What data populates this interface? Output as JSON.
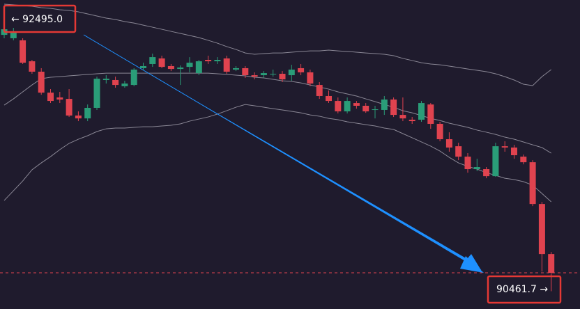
{
  "chart_data": {
    "type": "candlestick",
    "up_color": "#2a9d78",
    "down_color": "#e0434f",
    "band_color": "#8b8896",
    "background": "#1f1b2d",
    "ylim": [
      90325,
      92700
    ],
    "open": [
      92432,
      92406,
      92390,
      92229,
      92149,
      91988,
      91951,
      91940,
      91812,
      91790,
      91871,
      92085,
      92085,
      92037,
      92047,
      92176,
      92208,
      92251,
      92192,
      92170,
      92186,
      92138,
      92240,
      92229,
      92251,
      92165,
      92176,
      92122,
      92122,
      92133,
      92133,
      92122,
      92176,
      92144,
      92047,
      91962,
      91924,
      91844,
      91908,
      91887,
      91855,
      91855,
      91935,
      91817,
      91780,
      91780,
      91897,
      91748,
      91630,
      91576,
      91496,
      91400,
      91400,
      91346,
      91576,
      91566,
      91496,
      91453,
      91132,
      90747
    ],
    "high": [
      92495,
      92486,
      92406,
      92240,
      92176,
      92015,
      91994,
      92015,
      91844,
      91897,
      92111,
      92122,
      92111,
      92079,
      92176,
      92218,
      92288,
      92272,
      92208,
      92197,
      92261,
      92240,
      92272,
      92261,
      92272,
      92192,
      92192,
      92144,
      92154,
      92165,
      92154,
      92202,
      92208,
      92165,
      92069,
      92004,
      91951,
      91951,
      91924,
      91908,
      91887,
      91962,
      91951,
      91951,
      91801,
      91924,
      91908,
      91764,
      91683,
      91603,
      91523,
      91480,
      91416,
      91603,
      91614,
      91587,
      91512,
      91469,
      91148,
      90763
    ],
    "low": [
      92406,
      92390,
      92208,
      92133,
      91972,
      91908,
      91908,
      91801,
      91769,
      91769,
      91855,
      92058,
      92026,
      92026,
      92037,
      92160,
      92186,
      92176,
      92154,
      92047,
      92144,
      92122,
      92208,
      92208,
      92133,
      92154,
      92101,
      92090,
      92101,
      92111,
      92069,
      92079,
      92122,
      92037,
      91940,
      91908,
      91828,
      91828,
      91865,
      91833,
      91790,
      91817,
      91801,
      91769,
      91748,
      91764,
      91710,
      91614,
      91534,
      91469,
      91373,
      91384,
      91330,
      91341,
      91534,
      91480,
      91437,
      91116,
      90613,
      90461.7
    ],
    "close": [
      92475,
      92459,
      92218,
      92149,
      91988,
      91924,
      91935,
      91812,
      91790,
      91871,
      92095,
      92095,
      92047,
      92058,
      92165,
      92192,
      92261,
      92186,
      92170,
      92181,
      92218,
      92229,
      92229,
      92240,
      92149,
      92176,
      92122,
      92111,
      92138,
      92133,
      92090,
      92165,
      92144,
      92058,
      91962,
      91924,
      91844,
      91924,
      91887,
      91844,
      91860,
      91935,
      91817,
      91790,
      91769,
      91908,
      91748,
      91630,
      91566,
      91496,
      91400,
      91416,
      91346,
      91576,
      91566,
      91507,
      91453,
      91132,
      90747,
      90603
    ],
    "bands": [
      {
        "values": [
          92668,
          92663,
          92657,
          92652,
          92641,
          92636,
          92625,
          92620,
          92609,
          92593,
          92577,
          92561,
          92550,
          92534,
          92523,
          92507,
          92491,
          92475,
          92459,
          92443,
          92427,
          92411,
          92390,
          92368,
          92342,
          92320,
          92293,
          92283,
          92288,
          92293,
          92293,
          92299,
          92304,
          92309,
          92309,
          92315,
          92309,
          92304,
          92299,
          92293,
          92288,
          92283,
          92272,
          92251,
          92235,
          92218,
          92208,
          92202,
          92192,
          92181,
          92170,
          92160,
          92149,
          92133,
          92111,
          92085,
          92053,
          92042,
          92111,
          92165
        ]
      },
      {
        "values": [
          91892,
          91940,
          91994,
          92047,
          92095,
          92106,
          92111,
          92117,
          92122,
          92128,
          92133,
          92138,
          92138,
          92138,
          92138,
          92138,
          92138,
          92138,
          92138,
          92138,
          92138,
          92138,
          92138,
          92133,
          92128,
          92122,
          92117,
          92106,
          92101,
          92090,
          92079,
          92074,
          92063,
          92047,
          92031,
          92015,
          91994,
          91978,
          91962,
          91940,
          91919,
          91897,
          91876,
          91849,
          91833,
          91812,
          91790,
          91774,
          91753,
          91737,
          91721,
          91700,
          91684,
          91667,
          91646,
          91630,
          91609,
          91587,
          91566,
          91523
        ]
      },
      {
        "values": [
          91159,
          91234,
          91309,
          91395,
          91448,
          91496,
          91550,
          91598,
          91630,
          91657,
          91689,
          91710,
          91716,
          91716,
          91721,
          91726,
          91726,
          91732,
          91737,
          91748,
          91769,
          91785,
          91801,
          91823,
          91849,
          91876,
          91897,
          91887,
          91876,
          91865,
          91855,
          91844,
          91833,
          91817,
          91807,
          91790,
          91780,
          91764,
          91753,
          91742,
          91732,
          91716,
          91705,
          91673,
          91641,
          91609,
          91577,
          91539,
          91491,
          91448,
          91421,
          91400,
          91373,
          91352,
          91330,
          91320,
          91304,
          91277,
          91213,
          91149
        ]
      }
    ],
    "annotations": [
      {
        "text": "← 92495.0"
      },
      {
        "text": "90461.7 →"
      }
    ]
  }
}
